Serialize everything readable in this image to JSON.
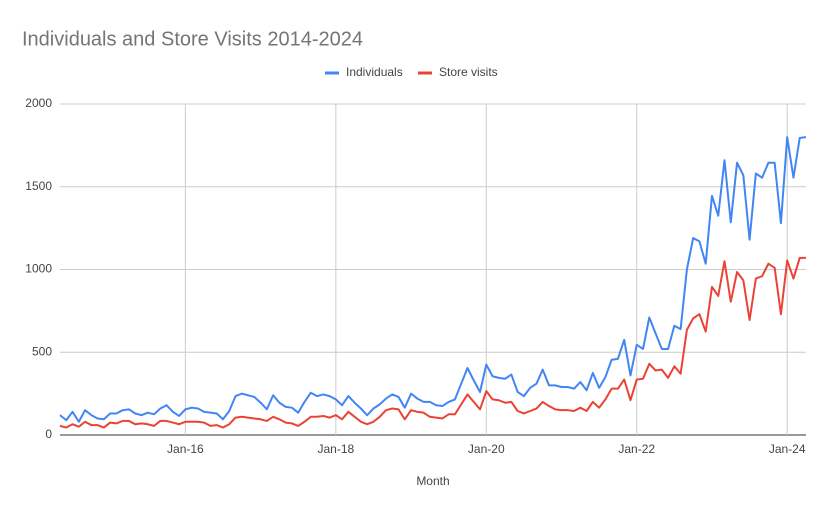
{
  "chart_data": {
    "type": "line",
    "title": "Individuals and Store Visits 2014-2024",
    "x_label": "Month",
    "categories": [
      null,
      null,
      null,
      null,
      null,
      null,
      null,
      null,
      null,
      null,
      null,
      null,
      null,
      null,
      null,
      null,
      null,
      null,
      null,
      null,
      "Jan-16",
      null,
      null,
      null,
      null,
      null,
      null,
      null,
      null,
      null,
      null,
      null,
      null,
      null,
      null,
      null,
      null,
      null,
      null,
      null,
      null,
      null,
      null,
      null,
      "Jan-18",
      null,
      null,
      null,
      null,
      null,
      null,
      null,
      null,
      null,
      null,
      null,
      null,
      null,
      null,
      null,
      null,
      null,
      null,
      null,
      null,
      null,
      null,
      null,
      "Jan-20",
      null,
      null,
      null,
      null,
      null,
      null,
      null,
      null,
      null,
      null,
      null,
      null,
      null,
      null,
      null,
      null,
      null,
      null,
      null,
      null,
      null,
      null,
      null,
      "Jan-22",
      null,
      null,
      null,
      null,
      null,
      null,
      null,
      null,
      null,
      null,
      null,
      null,
      null,
      null,
      null,
      null,
      null,
      null,
      null,
      null,
      null,
      null,
      null,
      "Jan-24",
      null,
      null,
      null
    ],
    "series": [
      {
        "name": "Individuals",
        "color": "#4285f4",
        "values": [
          120,
          90,
          140,
          80,
          150,
          120,
          100,
          95,
          130,
          130,
          150,
          155,
          130,
          120,
          135,
          125,
          160,
          180,
          140,
          115,
          155,
          165,
          160,
          140,
          135,
          130,
          95,
          145,
          235,
          250,
          240,
          230,
          195,
          155,
          240,
          195,
          170,
          165,
          135,
          200,
          255,
          235,
          245,
          235,
          215,
          180,
          235,
          195,
          160,
          120,
          160,
          185,
          220,
          245,
          230,
          165,
          250,
          220,
          200,
          200,
          180,
          175,
          200,
          215,
          310,
          405,
          330,
          260,
          425,
          355,
          345,
          340,
          365,
          260,
          235,
          285,
          310,
          395,
          300,
          300,
          290,
          290,
          280,
          320,
          270,
          375,
          285,
          350,
          455,
          460,
          575,
          360,
          545,
          520,
          710,
          615,
          520,
          520,
          660,
          640,
          1000,
          1190,
          1170,
          1035,
          1445,
          1325,
          1660,
          1285,
          1645,
          1570,
          1180,
          1580,
          1555,
          1645,
          1645,
          1280,
          1800,
          1555,
          1795,
          1800
        ]
      },
      {
        "name": "Store visits",
        "color": "#ea4335",
        "values": [
          55,
          45,
          65,
          50,
          80,
          60,
          60,
          45,
          75,
          70,
          85,
          85,
          65,
          70,
          65,
          55,
          85,
          85,
          75,
          65,
          80,
          80,
          80,
          75,
          55,
          60,
          45,
          65,
          105,
          110,
          105,
          100,
          95,
          85,
          110,
          95,
          75,
          70,
          55,
          80,
          110,
          110,
          115,
          105,
          120,
          95,
          140,
          110,
          80,
          65,
          80,
          110,
          150,
          160,
          155,
          95,
          150,
          140,
          135,
          110,
          105,
          100,
          125,
          125,
          185,
          245,
          200,
          155,
          265,
          215,
          210,
          195,
          200,
          145,
          130,
          145,
          160,
          200,
          175,
          155,
          150,
          150,
          145,
          165,
          145,
          200,
          165,
          215,
          280,
          280,
          335,
          210,
          335,
          340,
          430,
          390,
          395,
          345,
          415,
          370,
          635,
          705,
          730,
          625,
          895,
          840,
          1050,
          805,
          985,
          935,
          695,
          945,
          960,
          1035,
          1010,
          730,
          1055,
          945,
          1070,
          1070
        ]
      }
    ],
    "ylim": [
      0,
      2000
    ],
    "yticks": [
      0,
      500,
      1000,
      1500,
      2000
    ],
    "grid": true,
    "legend": "top"
  }
}
